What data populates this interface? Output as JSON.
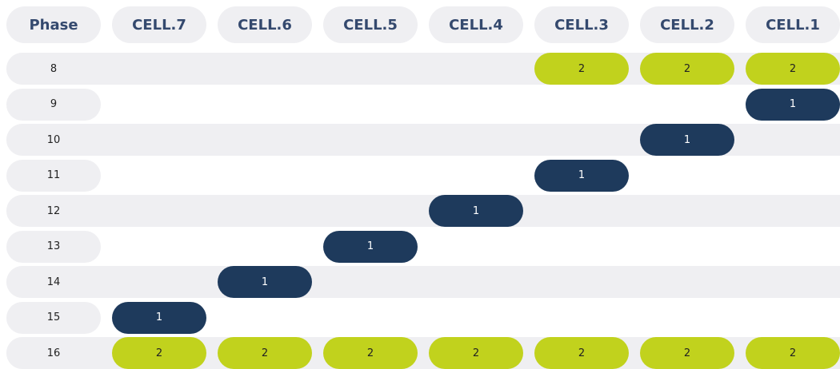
{
  "header": {
    "columns": [
      "Phase",
      "CELL.7",
      "CELL.6",
      "CELL.5",
      "CELL.4",
      "CELL.3",
      "CELL.2",
      "CELL.1"
    ]
  },
  "table": {
    "rows": [
      {
        "phase": "8",
        "cells": [
          null,
          null,
          null,
          null,
          "2",
          "2",
          "2"
        ]
      },
      {
        "phase": "9",
        "cells": [
          null,
          null,
          null,
          null,
          null,
          null,
          "1"
        ]
      },
      {
        "phase": "10",
        "cells": [
          null,
          null,
          null,
          null,
          null,
          "1",
          null
        ]
      },
      {
        "phase": "11",
        "cells": [
          null,
          null,
          null,
          null,
          "1",
          null,
          null
        ]
      },
      {
        "phase": "12",
        "cells": [
          null,
          null,
          null,
          "1",
          null,
          null,
          null
        ]
      },
      {
        "phase": "13",
        "cells": [
          null,
          null,
          "1",
          null,
          null,
          null,
          null
        ]
      },
      {
        "phase": "14",
        "cells": [
          null,
          "1",
          null,
          null,
          null,
          null,
          null
        ]
      },
      {
        "phase": "15",
        "cells": [
          "1",
          null,
          null,
          null,
          null,
          null,
          null
        ]
      },
      {
        "phase": "16",
        "cells": [
          "2",
          "2",
          "2",
          "2",
          "2",
          "2",
          "2"
        ]
      }
    ]
  }
}
